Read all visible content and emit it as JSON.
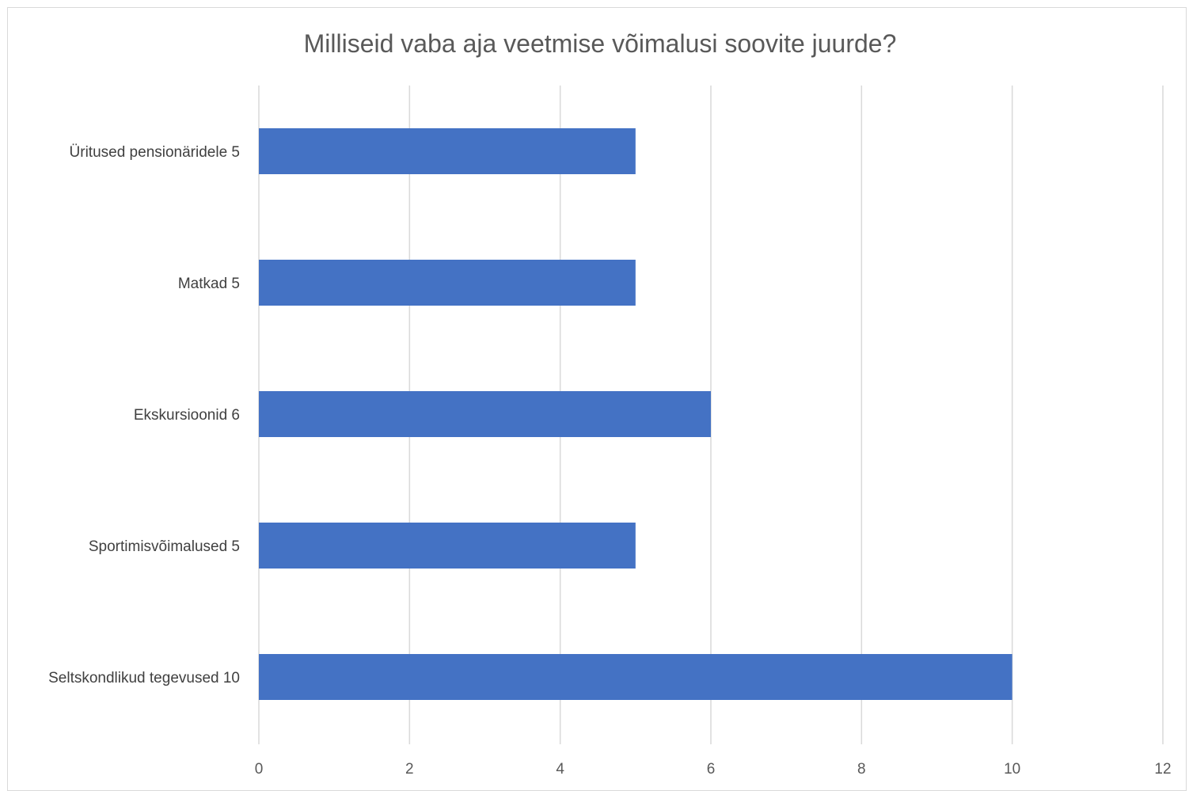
{
  "chart_data": {
    "type": "bar",
    "orientation": "horizontal",
    "title": "Milliseid vaba aja veetmise võimalusi soovite juurde?",
    "categories": [
      "Üritused pensionäridele 5",
      "Matkad 5",
      "Ekskursioonid 6",
      "Sportimisvõimalused 5",
      "Seltskondlikud tegevused 10"
    ],
    "values": [
      5,
      5,
      6,
      5,
      10
    ],
    "xlim": [
      0,
      12
    ],
    "xticks": [
      "0",
      "2",
      "4",
      "6",
      "8",
      "10",
      "12"
    ],
    "grid": true,
    "legend": "none",
    "bar_color": "#4472c4",
    "grid_color": "#d9d9d9"
  }
}
